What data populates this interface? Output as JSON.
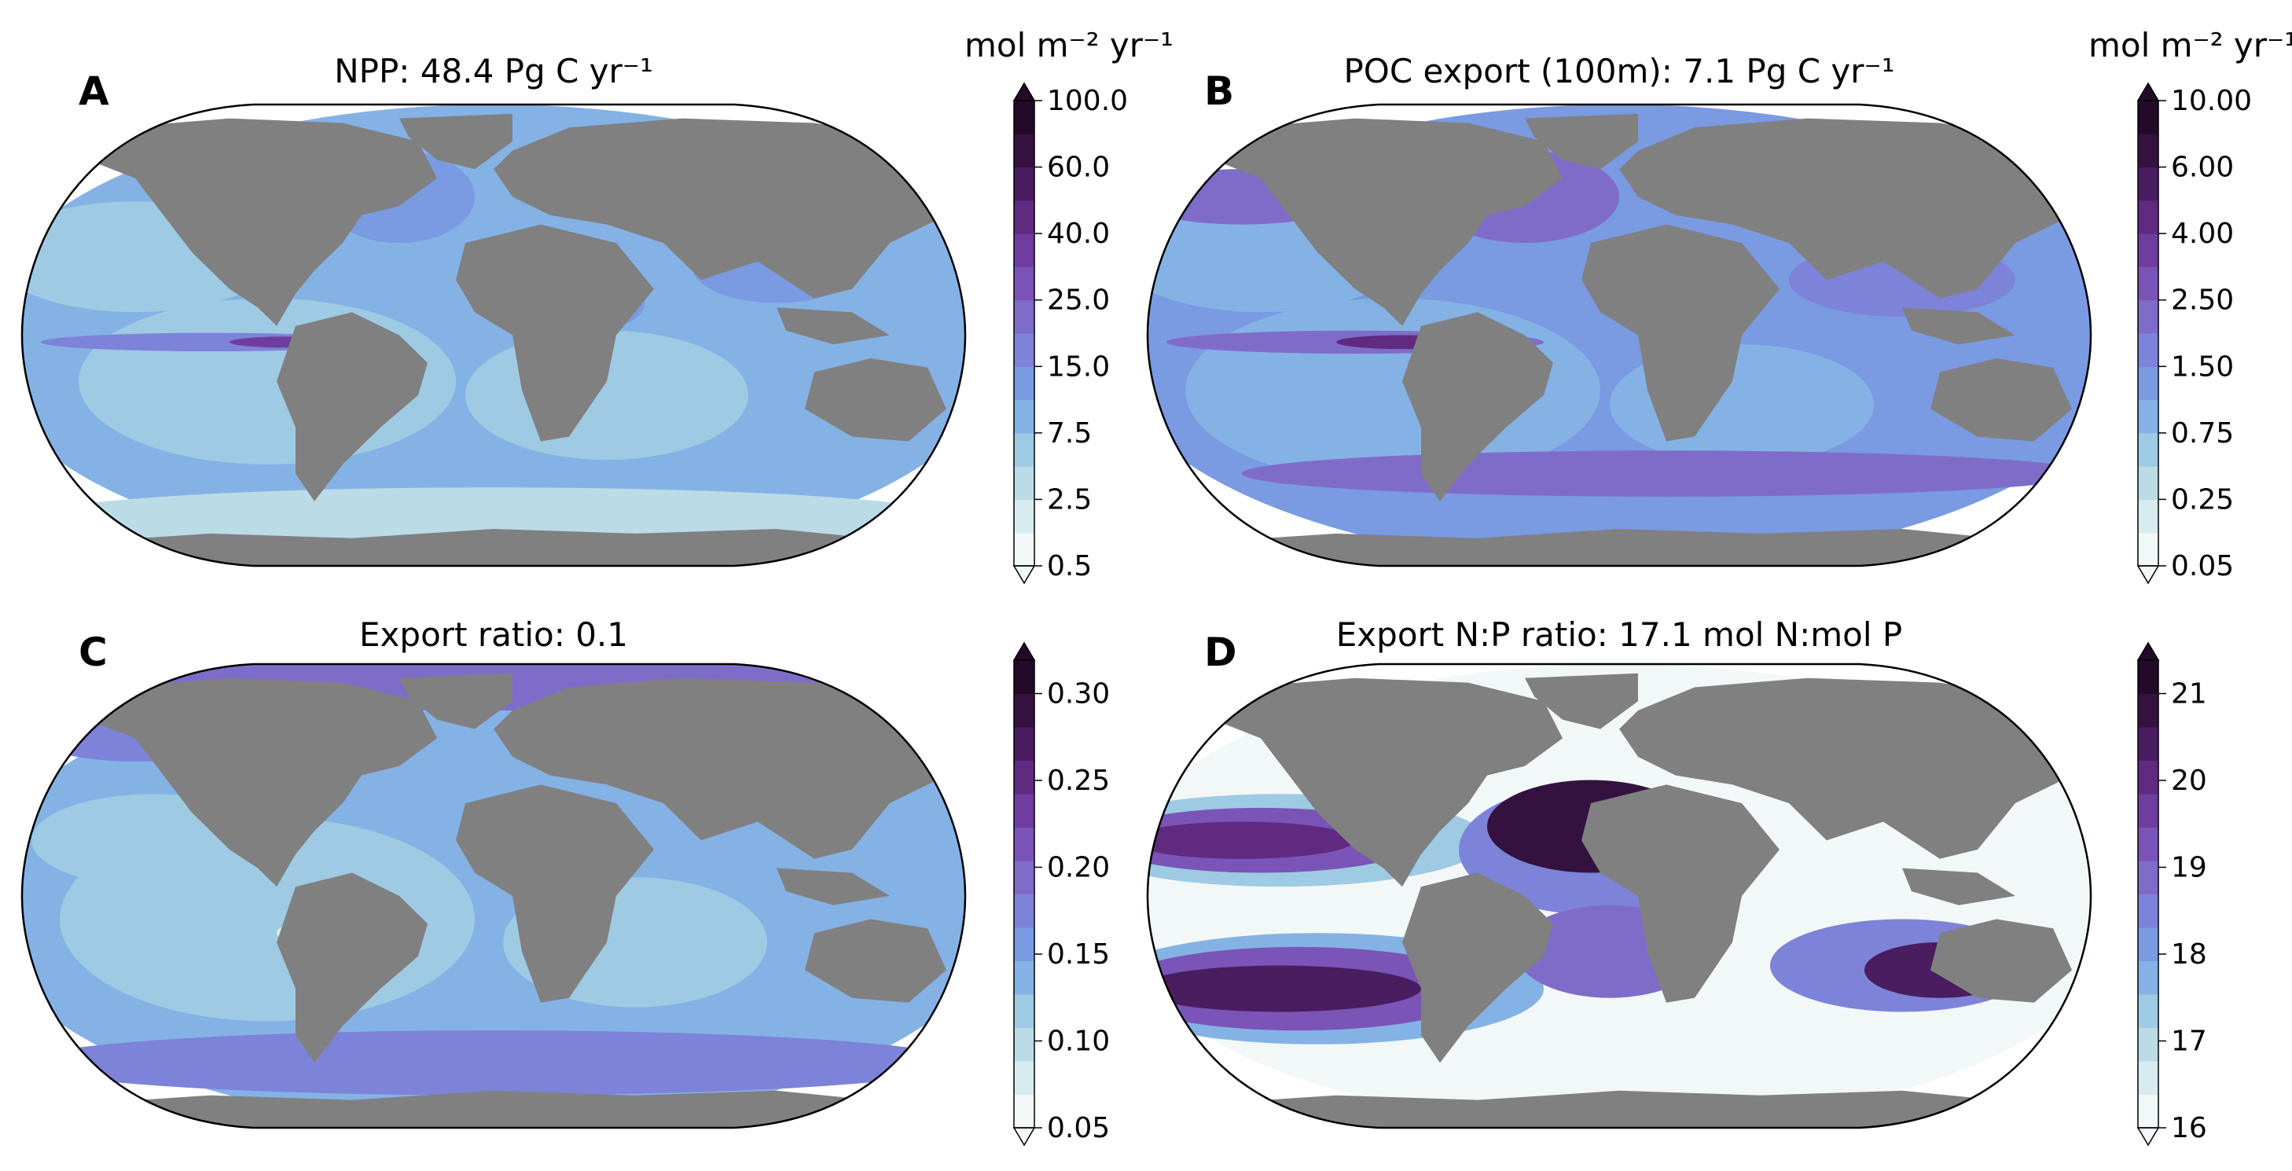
{
  "figure": {
    "panels": [
      {
        "id": "A",
        "label": "A",
        "title": "NPP: 48.4 Pg C yr⁻¹",
        "colorbar_unit": "mol m⁻² yr⁻¹",
        "colorbar_ticks": [
          "100.0",
          "60.0",
          "40.0",
          "25.0",
          "15.0",
          "7.5",
          "2.5",
          "0.5"
        ],
        "colors": [
          "#f2f8f8",
          "#d8ebee",
          "#bbdbe6",
          "#9ecae3",
          "#85b2e5",
          "#7a9ae2",
          "#7d83d8",
          "#7f6cc9",
          "#7a54b6",
          "#6f3d9e",
          "#5f2a80",
          "#4a1c60",
          "#34123f",
          "#220a28"
        ],
        "field": {
          "pattern": "npp",
          "dominant_levels": [
            "15.0",
            "25.0"
          ],
          "max_region": "equatorial Pacific upwelling"
        }
      },
      {
        "id": "B",
        "label": "B",
        "title": "POC export (100m): 7.1 Pg C yr⁻¹",
        "colorbar_unit": "mol m⁻² yr⁻¹",
        "colorbar_ticks": [
          "10.00",
          "6.00",
          "4.00",
          "2.50",
          "1.50",
          "0.75",
          "0.25",
          "0.05"
        ],
        "colors": [
          "#f2f8f8",
          "#d8ebee",
          "#bbdbe6",
          "#9ecae3",
          "#85b2e5",
          "#7a9ae2",
          "#7d83d8",
          "#7f6cc9",
          "#7a54b6",
          "#6f3d9e",
          "#5f2a80",
          "#4a1c60",
          "#34123f",
          "#220a28"
        ],
        "field": {
          "pattern": "poc",
          "dominant_levels": [
            "1.50",
            "2.50"
          ],
          "max_region": "equatorial Pacific and coastal upwelling"
        }
      },
      {
        "id": "C",
        "label": "C",
        "title": "Export ratio: 0.1",
        "colorbar_unit": "",
        "colorbar_ticks": [
          "0.30",
          "0.25",
          "0.20",
          "0.15",
          "0.10",
          "0.05"
        ],
        "colors": [
          "#f2f8f8",
          "#d8ebee",
          "#bbdbe6",
          "#9ecae3",
          "#85b2e5",
          "#7a9ae2",
          "#7d83d8",
          "#7f6cc9",
          "#7a54b6",
          "#6f3d9e",
          "#5f2a80",
          "#4a1c60",
          "#34123f",
          "#220a28"
        ],
        "field": {
          "pattern": "ratio",
          "dominant_levels": [
            "0.10",
            "0.15"
          ],
          "max_region": "high latitudes"
        }
      },
      {
        "id": "D",
        "label": "D",
        "title": "Export N:P ratio: 17.1 mol N:mol P",
        "colorbar_unit": "",
        "colorbar_ticks": [
          "21",
          "20",
          "19",
          "18",
          "17",
          "16"
        ],
        "colors": [
          "#f2f8f8",
          "#d8ebee",
          "#bbdbe6",
          "#9ecae3",
          "#85b2e5",
          "#7a9ae2",
          "#7d83d8",
          "#7f6cc9",
          "#7a54b6",
          "#6f3d9e",
          "#5f2a80",
          "#4a1c60",
          "#34123f",
          "#220a28"
        ],
        "field": {
          "pattern": "np",
          "dominant_levels": [
            "16",
            "17"
          ],
          "max_region": "subtropical gyres"
        }
      }
    ],
    "land_color": "#808080",
    "map_projection": "robinson"
  },
  "chart_data": [
    {
      "type": "heatmap",
      "title": "NPP: 48.4 Pg C yr⁻¹",
      "colorbar_label": "mol m⁻² yr⁻¹",
      "colorbar_ticks": [
        100.0,
        60.0,
        40.0,
        25.0,
        15.0,
        7.5,
        2.5,
        0.5
      ],
      "colorbar_extend": "both",
      "summary_value": 48.4
    },
    {
      "type": "heatmap",
      "title": "POC export (100m): 7.1 Pg C yr⁻¹",
      "colorbar_label": "mol m⁻² yr⁻¹",
      "colorbar_ticks": [
        10.0,
        6.0,
        4.0,
        2.5,
        1.5,
        0.75,
        0.25,
        0.05
      ],
      "colorbar_extend": "both",
      "summary_value": 7.1
    },
    {
      "type": "heatmap",
      "title": "Export ratio: 0.1",
      "colorbar_ticks": [
        0.3,
        0.25,
        0.2,
        0.15,
        0.1,
        0.05
      ],
      "colorbar_extend": "both",
      "summary_value": 0.1
    },
    {
      "type": "heatmap",
      "title": "Export N:P ratio: 17.1 mol N:mol P",
      "colorbar_ticks": [
        21,
        20,
        19,
        18,
        17,
        16
      ],
      "colorbar_extend": "both",
      "summary_value": 17.1
    }
  ]
}
